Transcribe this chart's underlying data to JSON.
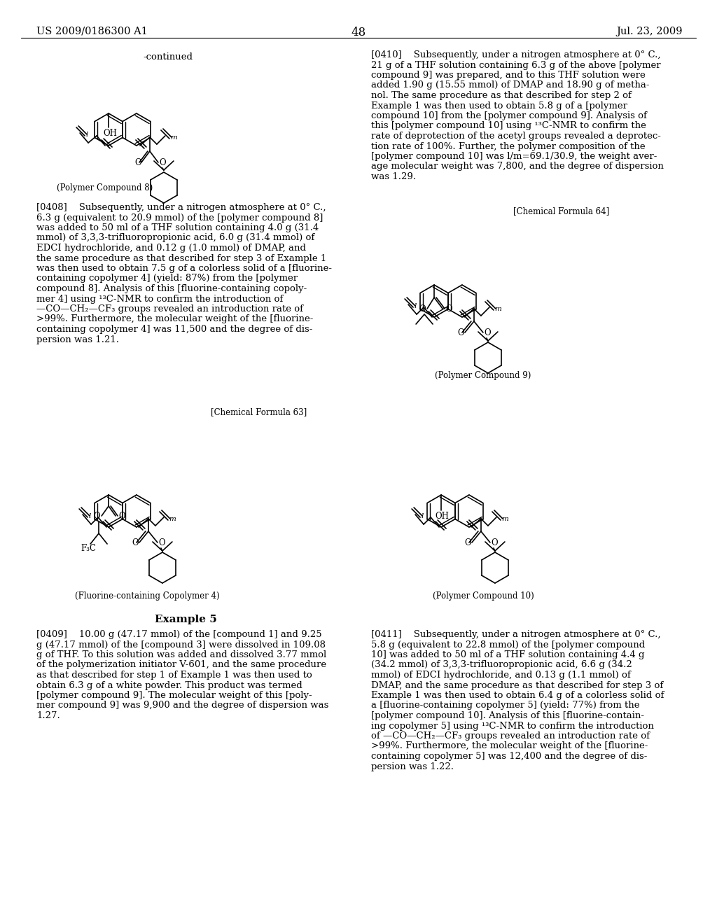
{
  "page_number": "48",
  "patent_number": "US 2009/0186300 A1",
  "patent_date": "Jul. 23, 2009",
  "background_color": "#ffffff",
  "text_color": "#000000",
  "font_size_body": 9.5,
  "font_size_label": 8.5,
  "font_size_header": 10.5,
  "font_size_page_num": 12,
  "continued_text": "-continued",
  "chemical_formula_63": "[Chemical Formula 63]",
  "chemical_formula_64": "[Chemical Formula 64]",
  "example_5": "Example 5",
  "label_polymer8": "(Polymer Compound 8)",
  "label_polymer9": "(Polymer Compound 9)",
  "label_polymer10": "(Polymer Compound 10)",
  "label_fluoro4": "(Fluorine-containing Copolymer 4)",
  "para_0408_lines": [
    "[0408]    Subsequently, under a nitrogen atmosphere at 0° C.,",
    "6.3 g (equivalent to 20.9 mmol) of the [polymer compound 8]",
    "was added to 50 ml of a THF solution containing 4.0 g (31.4",
    "mmol) of 3,3,3-trifluoropropionic acid, 6.0 g (31.4 mmol) of",
    "EDCI hydrochloride, and 0.12 g (1.0 mmol) of DMAP, and",
    "the same procedure as that described for step 3 of Example 1",
    "was then used to obtain 7.5 g of a colorless solid of a [fluorine-",
    "containing copolymer 4] (yield: 87%) from the [polymer",
    "compound 8]. Analysis of this [fluorine-containing copoly-",
    "mer 4] using ¹³C-NMR to confirm the introduction of",
    "—CO—CH₂—CF₃ groups revealed an introduction rate of",
    ">99%. Furthermore, the molecular weight of the [fluorine-",
    "containing copolymer 4] was 11,500 and the degree of dis-",
    "persion was 1.21."
  ],
  "para_0409_lines": [
    "[0409]    10.00 g (47.17 mmol) of the [compound 1] and 9.25",
    "g (47.17 mmol) of the [compound 3] were dissolved in 109.08",
    "g of THF. To this solution was added and dissolved 3.77 mmol",
    "of the polymerization initiator V-601, and the same procedure",
    "as that described for step 1 of Example 1 was then used to",
    "obtain 6.3 g of a white powder. This product was termed",
    "[polymer compound 9]. The molecular weight of this [poly-",
    "mer compound 9] was 9,900 and the degree of dispersion was",
    "1.27."
  ],
  "para_0410_lines": [
    "[0410]    Subsequently, under a nitrogen atmosphere at 0° C.,",
    "21 g of a THF solution containing 6.3 g of the above [polymer",
    "compound 9] was prepared, and to this THF solution were",
    "added 1.90 g (15.55 mmol) of DMAP and 18.90 g of metha-",
    "nol. The same procedure as that described for step 2 of",
    "Example 1 was then used to obtain 5.8 g of a [polymer",
    "compound 10] from the [polymer compound 9]. Analysis of",
    "this [polymer compound 10] using ¹³C-NMR to confirm the",
    "rate of deprotection of the acetyl groups revealed a deprotec-",
    "tion rate of 100%. Further, the polymer composition of the",
    "[polymer compound 10] was l/m=69.1/30.9, the weight aver-",
    "age molecular weight was 7,800, and the degree of dispersion",
    "was 1.29."
  ],
  "para_0411_lines": [
    "[0411]    Subsequently, under a nitrogen atmosphere at 0° C.,",
    "5.8 g (equivalent to 22.8 mmol) of the [polymer compound",
    "10] was added to 50 ml of a THF solution containing 4.4 g",
    "(34.2 mmol) of 3,3,3-trifluoropropionic acid, 6.6 g (34.2",
    "mmol) of EDCI hydrochloride, and 0.13 g (1.1 mmol) of",
    "DMAP, and the same procedure as that described for step 3 of",
    "Example 1 was then used to obtain 6.4 g of a colorless solid of",
    "a [fluorine-containing copolymer 5] (yield: 77%) from the",
    "[polymer compound 10]. Analysis of this [fluorine-contain-",
    "ing copolymer 5] using ¹³C-NMR to confirm the introduction",
    "of —CO—CH₂—CF₃ groups revealed an introduction rate of",
    ">99%. Furthermore, the molecular weight of the [fluorine-",
    "containing copolymer 5] was 12,400 and the degree of dis-",
    "persion was 1.22."
  ]
}
